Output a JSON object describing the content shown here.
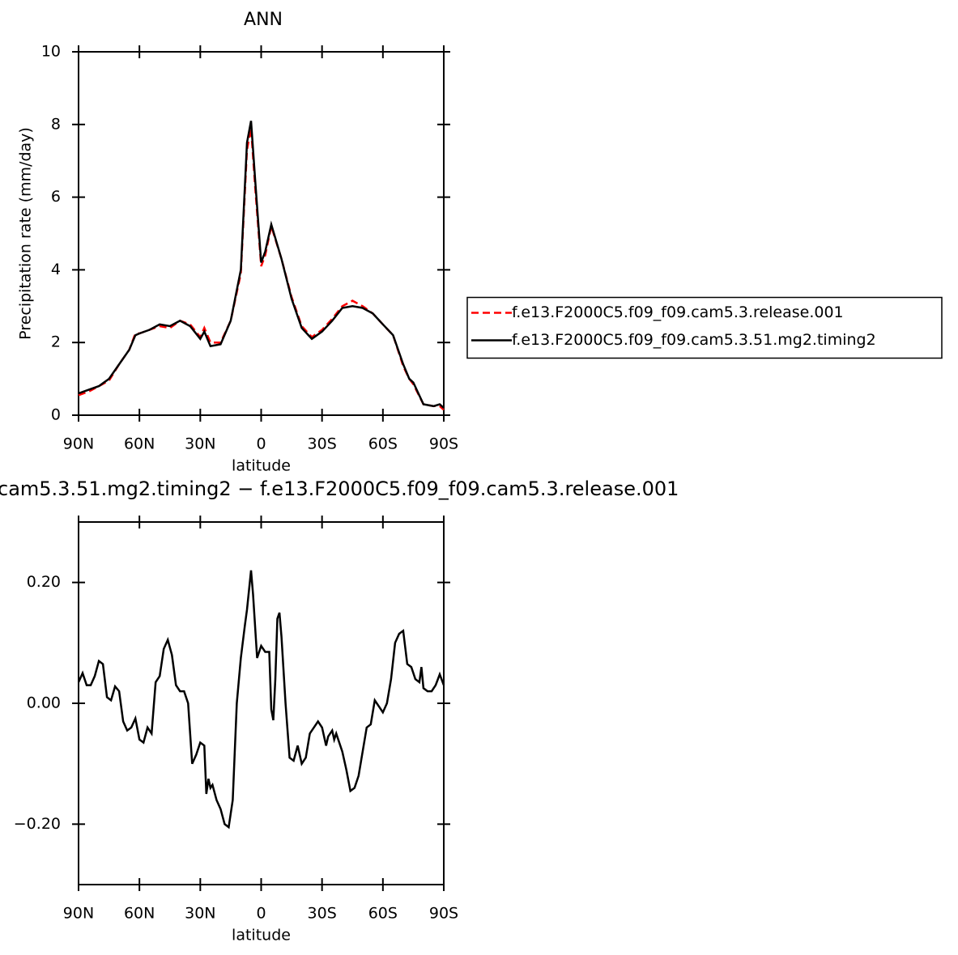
{
  "chart_data": [
    {
      "type": "line",
      "title": "ANN",
      "ylabel": "Precipitation rate (mm/day)",
      "xlabel": "latitude",
      "x": [
        90,
        85,
        80,
        75,
        70,
        65,
        62,
        60,
        55,
        50,
        45,
        40,
        35,
        30,
        28,
        25,
        20,
        15,
        10,
        7,
        5,
        3,
        0,
        -2,
        -5,
        -10,
        -15,
        -20,
        -25,
        -30,
        -35,
        -40,
        -45,
        -50,
        -55,
        -60,
        -65,
        -70,
        -73,
        -75,
        -80,
        -85,
        -88,
        -90
      ],
      "series": [
        {
          "name": "f.e13.F2000C5.f09_f09.cam5.3.release.001",
          "color": "#ff0000",
          "linestyle": "dashed",
          "values": [
            0.55,
            0.65,
            0.8,
            0.95,
            1.4,
            1.8,
            2.25,
            2.25,
            2.35,
            2.45,
            2.4,
            2.6,
            2.5,
            2.15,
            2.4,
            2.0,
            2.0,
            2.6,
            3.9,
            7.3,
            7.9,
            6.3,
            4.1,
            4.4,
            5.2,
            4.3,
            3.25,
            2.45,
            2.15,
            2.35,
            2.65,
            3.0,
            3.15,
            3.0,
            2.8,
            2.5,
            2.2,
            1.35,
            1.0,
            0.85,
            0.3,
            0.25,
            0.25,
            0.15
          ]
        },
        {
          "name": "f.e13.F2000C5.f09_f09.cam5.3.51.mg2.timing2",
          "color": "#000000",
          "linestyle": "solid",
          "values": [
            0.6,
            0.7,
            0.8,
            1.0,
            1.4,
            1.8,
            2.2,
            2.25,
            2.35,
            2.5,
            2.45,
            2.6,
            2.45,
            2.1,
            2.3,
            1.9,
            1.95,
            2.6,
            4.0,
            7.5,
            8.1,
            6.5,
            4.2,
            4.5,
            5.25,
            4.3,
            3.2,
            2.4,
            2.1,
            2.3,
            2.6,
            2.95,
            3.0,
            2.95,
            2.8,
            2.5,
            2.2,
            1.4,
            1.0,
            0.9,
            0.3,
            0.25,
            0.3,
            0.2
          ]
        }
      ],
      "xlim": [
        90,
        -90
      ],
      "xticks": [
        {
          "value": 90,
          "label": "90N"
        },
        {
          "value": 60,
          "label": "60N"
        },
        {
          "value": 30,
          "label": "30N"
        },
        0,
        {
          "value": -30,
          "label": "30S"
        },
        {
          "value": -60,
          "label": "60S"
        },
        {
          "value": -90,
          "label": "90S"
        }
      ],
      "ylim": [
        0,
        10
      ],
      "yticks": [
        0,
        2,
        4,
        6,
        8,
        10
      ],
      "legend": "right"
    },
    {
      "type": "line",
      "title": "cam5.3.51.mg2.timing2 − f.e13.F2000C5.f09_f09.cam5.3.release.001",
      "xlabel": "latitude",
      "x": [
        90,
        88,
        86,
        84,
        82,
        80,
        78,
        76,
        74,
        72,
        70,
        68,
        66,
        64,
        62,
        60,
        58,
        56,
        54,
        52,
        50,
        48,
        46,
        44,
        42,
        40,
        38,
        36,
        34,
        32,
        30,
        28,
        27,
        26,
        25,
        24,
        22,
        20,
        18,
        16,
        14,
        12,
        10,
        8,
        7,
        5,
        4,
        2,
        1,
        0,
        -2,
        -4,
        -5,
        -6,
        -7,
        -8,
        -9,
        -10,
        -12,
        -14,
        -16,
        -18,
        -20,
        -22,
        -24,
        -26,
        -28,
        -30,
        -32,
        -33,
        -35,
        -36,
        -37,
        -40,
        -42,
        -44,
        -46,
        -48,
        -52,
        -54,
        -56,
        -58,
        -60,
        -62,
        -64,
        -66,
        -68,
        -70,
        -72,
        -74,
        -76,
        -78,
        -79,
        -80,
        -82,
        -84,
        -86,
        -88,
        -90
      ],
      "series": [
        {
          "color": "#000000",
          "linestyle": "solid",
          "values": [
            0.035,
            0.05,
            0.03,
            0.03,
            0.045,
            0.07,
            0.065,
            0.01,
            0.005,
            0.028,
            0.02,
            -0.03,
            -0.045,
            -0.04,
            -0.025,
            -0.06,
            -0.065,
            -0.04,
            -0.05,
            0.035,
            0.045,
            0.09,
            0.105,
            0.08,
            0.03,
            0.02,
            0.02,
            0.0,
            -0.1,
            -0.085,
            -0.065,
            -0.07,
            -0.15,
            -0.125,
            -0.14,
            -0.135,
            -0.16,
            -0.175,
            -0.2,
            -0.205,
            -0.16,
            0.0,
            0.075,
            0.13,
            0.155,
            0.22,
            0.18,
            0.075,
            0.085,
            0.095,
            0.085,
            0.085,
            -0.01,
            -0.028,
            0.04,
            0.14,
            0.15,
            0.11,
            0.0,
            -0.09,
            -0.095,
            -0.07,
            -0.1,
            -0.09,
            -0.05,
            -0.04,
            -0.03,
            -0.04,
            -0.07,
            -0.055,
            -0.045,
            -0.06,
            -0.05,
            -0.08,
            -0.11,
            -0.145,
            -0.14,
            -0.12,
            -0.04,
            -0.035,
            0.005,
            -0.005,
            -0.015,
            0.0,
            0.04,
            0.1,
            0.115,
            0.12,
            0.065,
            0.06,
            0.04,
            0.035,
            0.06,
            0.025,
            0.02,
            0.02,
            0.03,
            0.048,
            0.03
          ]
        }
      ],
      "xlim": [
        90,
        -90
      ],
      "xticks": [
        {
          "value": 90,
          "label": "90N"
        },
        {
          "value": 60,
          "label": "60N"
        },
        {
          "value": 30,
          "label": "30N"
        },
        0,
        {
          "value": -30,
          "label": "30S"
        },
        {
          "value": -60,
          "label": "60S"
        },
        {
          "value": -90,
          "label": "90S"
        }
      ],
      "ylim": [
        -0.3,
        0.3
      ],
      "yticks": [
        {
          "value": -0.2,
          "label": "−0.20"
        },
        {
          "value": 0,
          "label": "0.00"
        },
        {
          "value": 0.2,
          "label": "0.20"
        }
      ]
    }
  ]
}
